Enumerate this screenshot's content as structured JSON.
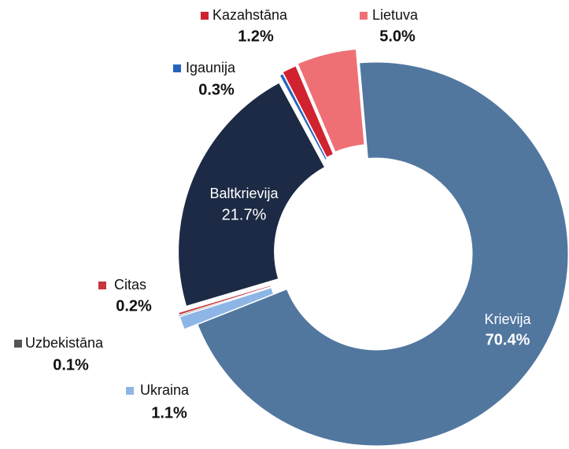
{
  "chart_data": {
    "type": "pie",
    "categories": [
      "Krievija",
      "Ukraina",
      "Uzbekistāna",
      "Citas",
      "Baltkrievija",
      "Igaunija",
      "Kazahstāna",
      "Lietuva"
    ],
    "values": [
      70.4,
      1.1,
      0.1,
      0.2,
      21.7,
      0.3,
      1.2,
      5.0
    ],
    "value_labels": [
      "70.4%",
      "1.1%",
      "0.1%",
      "0.2%",
      "21.7%",
      "0.3%",
      "1.2%",
      "5.0%"
    ],
    "colors": [
      "#51779f",
      "#8db6e6",
      "#555555",
      "#c7353d",
      "#1c2a45",
      "#2563c0",
      "#d0232f",
      "#ee7075"
    ]
  }
}
